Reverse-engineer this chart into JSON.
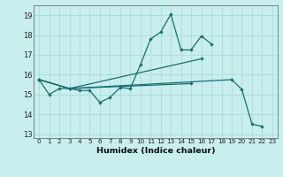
{
  "title": "",
  "xlabel": "Humidex (Indice chaleur)",
  "background_color": "#c8eeee",
  "grid_color": "#a8d8d8",
  "line_color": "#1a6e6e",
  "ylim": [
    12.8,
    19.5
  ],
  "xlim": [
    -0.5,
    23.5
  ],
  "yticks": [
    13,
    14,
    15,
    16,
    17,
    18,
    19
  ],
  "xticks": [
    0,
    1,
    2,
    3,
    4,
    5,
    6,
    7,
    8,
    9,
    10,
    11,
    12,
    13,
    14,
    15,
    16,
    17,
    18,
    19,
    20,
    21,
    22,
    23
  ],
  "series1_x": [
    0,
    1,
    2,
    3,
    4,
    5,
    6,
    7,
    8,
    9,
    10,
    11,
    12,
    13,
    14,
    15,
    16,
    17
  ],
  "series1_y": [
    15.75,
    15.0,
    15.3,
    15.3,
    15.2,
    15.2,
    14.6,
    14.85,
    15.35,
    15.3,
    16.5,
    17.8,
    18.15,
    19.05,
    17.25,
    17.25,
    17.95,
    17.55
  ],
  "series2_x": [
    0,
    3,
    16
  ],
  "series2_y": [
    15.75,
    15.3,
    16.8
  ],
  "series3_x": [
    0,
    3,
    19,
    20,
    21,
    22
  ],
  "series3_y": [
    15.75,
    15.3,
    15.75,
    15.25,
    13.5,
    13.4
  ],
  "series4_x": [
    0,
    3,
    15
  ],
  "series4_y": [
    15.75,
    15.3,
    15.55
  ]
}
